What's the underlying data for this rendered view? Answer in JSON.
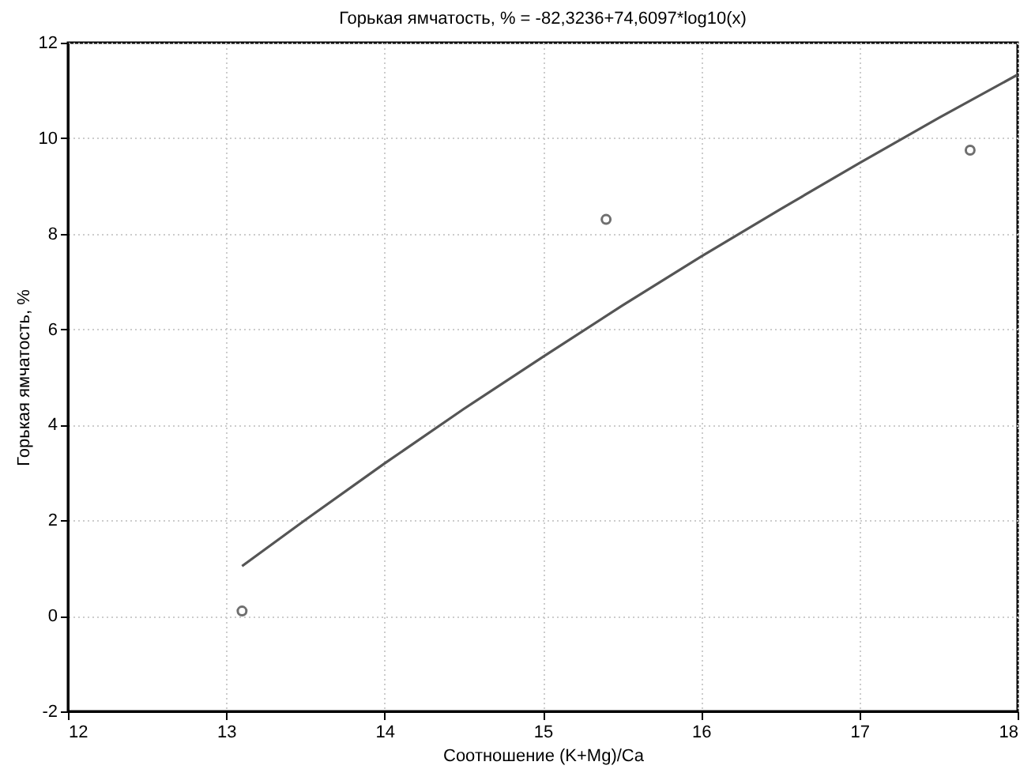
{
  "chart_data": {
    "type": "scatter",
    "title": "Горькая ямчатость, % = -82,3236+74,6097*log10(x)",
    "xlabel": "Соотношение (K+Mg)/Ca",
    "ylabel": "Горькая ямчатость, %",
    "xlim": [
      12,
      18
    ],
    "xticks": [
      12,
      13,
      14,
      15,
      16,
      17,
      18
    ],
    "ylim": [
      -2,
      12
    ],
    "yticks": [
      -2,
      0,
      2,
      4,
      6,
      8,
      10,
      12
    ],
    "grid": true,
    "marker": "circle",
    "series": [
      {
        "color": "#333333",
        "x": [
          13.1,
          15.4,
          17.7
        ],
        "values": [
          0.1,
          8.3,
          9.75
        ]
      },
      {
        "type": "line",
        "color": "#555555",
        "marker": "none",
        "x": [
          13.1,
          13.5,
          14,
          14.5,
          15,
          15.5,
          16,
          16.5,
          17,
          17.5,
          18
        ],
        "values": [
          1.04,
          2.01,
          3.19,
          4.33,
          5.42,
          6.49,
          7.52,
          8.51,
          9.48,
          10.42,
          11.33
        ]
      }
    ]
  }
}
